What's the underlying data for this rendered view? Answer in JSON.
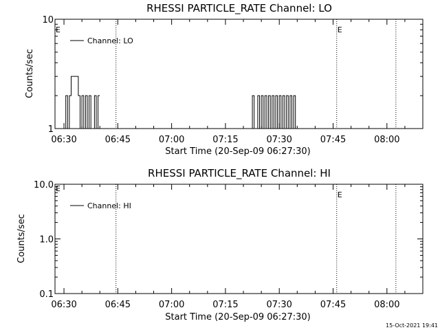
{
  "timestamp": "15-Oct-2021 19:41",
  "chart_data": [
    {
      "type": "line",
      "title": "RHESSI PARTICLE_RATE Channel: LO",
      "xlabel": "Start Time (20-Sep-09 06:27:30)",
      "ylabel": "Counts/sec",
      "yscale": "log",
      "ylim": [
        1,
        10
      ],
      "yticks": [
        1,
        10
      ],
      "ytick_labels": [
        "1",
        "10"
      ],
      "xlim": [
        "06:27:30",
        "08:10:00"
      ],
      "xticks": [
        "06:30",
        "06:45",
        "07:00",
        "07:15",
        "07:30",
        "07:45",
        "08:00"
      ],
      "legend": {
        "placement": "top-left",
        "entries": [
          "Channel: LO"
        ]
      },
      "vlines": [
        {
          "time": "06:44:30",
          "style": "dotted"
        },
        {
          "time": "07:46:00",
          "style": "dotted",
          "label": "E"
        },
        {
          "time": "08:02:30",
          "style": "dotted"
        }
      ],
      "corner_label": "E",
      "series": [
        {
          "name": "Channel: LO",
          "x": [
            "06:30:00",
            "06:30:30",
            "06:30:30",
            "06:31:00",
            "06:31:00",
            "06:31:30",
            "06:31:30",
            "06:32:00",
            "06:32:00",
            "06:32:30",
            "06:32:30",
            "06:33:30",
            "06:33:30",
            "06:34:00",
            "06:34:00",
            "06:34:30",
            "06:34:30",
            "06:35:00",
            "06:35:00",
            "06:35:30",
            "06:35:30",
            "06:36:00",
            "06:36:00",
            "06:36:30",
            "06:36:30",
            "06:37:00",
            "06:37:00",
            "06:37:30",
            "06:37:30",
            "06:38:00",
            "06:38:00",
            "06:38:30",
            "06:38:30",
            "06:39:00",
            "06:39:00",
            "06:39:30",
            "06:39:30",
            "06:40:00",
            "07:22:00",
            "07:22:30",
            "07:22:30",
            "07:23:00",
            "07:23:00",
            "07:24:00",
            "07:24:00",
            "07:24:30",
            "07:24:30",
            "07:25:00",
            "07:25:00",
            "07:25:30",
            "07:25:30",
            "07:26:00",
            "07:26:00",
            "07:26:30",
            "07:26:30",
            "07:27:00",
            "07:27:00",
            "07:27:30",
            "07:27:30",
            "07:28:00",
            "07:28:00",
            "07:28:30",
            "07:28:30",
            "07:29:00",
            "07:29:00",
            "07:29:30",
            "07:29:30",
            "07:30:00",
            "07:30:00",
            "07:30:30",
            "07:30:30",
            "07:31:00",
            "07:31:00",
            "07:31:30",
            "07:31:30",
            "07:32:00",
            "07:32:00",
            "07:32:30",
            "07:32:30",
            "07:33:00",
            "07:33:00",
            "07:33:30",
            "07:33:30",
            "07:34:00",
            "07:34:00",
            "07:34:30",
            "07:34:30",
            "07:35:00"
          ],
          "y": [
            1,
            1,
            2,
            2,
            1,
            1,
            2,
            2,
            3,
            3,
            3,
            3,
            3,
            3,
            2,
            2,
            1,
            1,
            2,
            2,
            1,
            1,
            2,
            2,
            1,
            1,
            2,
            2,
            1,
            1,
            1,
            1,
            2,
            2,
            1,
            1,
            2,
            2,
            1,
            1,
            2,
            2,
            1,
            1,
            2,
            2,
            1,
            1,
            2,
            2,
            1,
            1,
            2,
            2,
            1,
            1,
            2,
            2,
            1,
            1,
            2,
            2,
            1,
            1,
            2,
            2,
            1,
            1,
            2,
            2,
            1,
            1,
            2,
            2,
            1,
            1,
            2,
            2,
            1,
            1,
            2,
            2,
            1,
            1,
            2,
            2,
            1,
            1
          ]
        }
      ]
    },
    {
      "type": "line",
      "title": "RHESSI PARTICLE_RATE Channel: HI",
      "xlabel": "Start Time (20-Sep-09 06:27:30)",
      "ylabel": "Counts/sec",
      "yscale": "log",
      "ylim": [
        0.1,
        10
      ],
      "yticks": [
        0.1,
        1,
        10
      ],
      "ytick_labels": [
        "0.1",
        "1.0",
        "10.0"
      ],
      "xlim": [
        "06:27:30",
        "08:10:00"
      ],
      "xticks": [
        "06:30",
        "06:45",
        "07:00",
        "07:15",
        "07:30",
        "07:45",
        "08:00"
      ],
      "legend": {
        "placement": "top-left",
        "entries": [
          "Channel: HI"
        ]
      },
      "vlines": [
        {
          "time": "06:44:30",
          "style": "dotted"
        },
        {
          "time": "07:46:00",
          "style": "dotted",
          "label": "E"
        },
        {
          "time": "08:02:30",
          "style": "dotted"
        }
      ],
      "corner_label": "E",
      "series": [
        {
          "name": "Channel: HI",
          "x": [],
          "y": []
        }
      ]
    }
  ]
}
